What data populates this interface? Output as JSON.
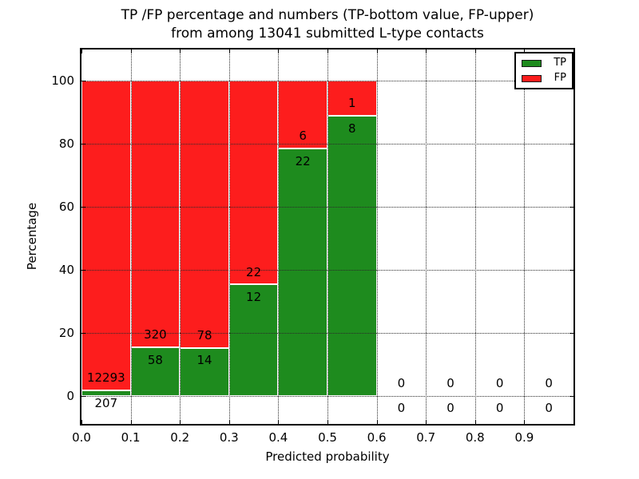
{
  "chart_data": {
    "type": "bar",
    "stacked": true,
    "title": "TP /FP percentage and numbers (TP-bottom value, FP-upper) from among 13041 submitted L-type contacts",
    "title_lines": [
      "TP /FP percentage and numbers (TP-bottom value, FP-upper)",
      "from among 13041 submitted L-type contacts"
    ],
    "total_submitted": 13041,
    "xlabel": "Predicted probability",
    "ylabel": "Percentage",
    "xlim": [
      0.0,
      1.0
    ],
    "ylim": [
      -9,
      110
    ],
    "grid": true,
    "grid_style": "dotted",
    "legend_position": "upper right",
    "series": [
      {
        "name": "TP",
        "color": "#1e8b1e"
      },
      {
        "name": "FP",
        "color": "#fd1d1d"
      }
    ],
    "x_ticks": [
      {
        "value": 0.0,
        "label": "0.0"
      },
      {
        "value": 0.1,
        "label": "0.1"
      },
      {
        "value": 0.2,
        "label": "0.2"
      },
      {
        "value": 0.3,
        "label": "0.3"
      },
      {
        "value": 0.4,
        "label": "0.4"
      },
      {
        "value": 0.5,
        "label": "0.5"
      },
      {
        "value": 0.6,
        "label": "0.6"
      },
      {
        "value": 0.7,
        "label": "0.7"
      },
      {
        "value": 0.8,
        "label": "0.8"
      },
      {
        "value": 0.9,
        "label": "0.9"
      },
      {
        "value": 1.0,
        "label": ""
      }
    ],
    "y_ticks": [
      0,
      20,
      40,
      60,
      80,
      100
    ],
    "bins": [
      {
        "x0": 0.0,
        "x1": 0.1,
        "tp": 207,
        "fp": 12293,
        "tp_pct": 1.66,
        "fp_pct": 98.34
      },
      {
        "x0": 0.1,
        "x1": 0.2,
        "tp": 58,
        "fp": 320,
        "tp_pct": 15.34,
        "fp_pct": 84.66
      },
      {
        "x0": 0.2,
        "x1": 0.3,
        "tp": 14,
        "fp": 78,
        "tp_pct": 15.22,
        "fp_pct": 84.78
      },
      {
        "x0": 0.3,
        "x1": 0.4,
        "tp": 12,
        "fp": 22,
        "tp_pct": 35.29,
        "fp_pct": 64.71
      },
      {
        "x0": 0.4,
        "x1": 0.5,
        "tp": 22,
        "fp": 6,
        "tp_pct": 78.57,
        "fp_pct": 21.43
      },
      {
        "x0": 0.5,
        "x1": 0.6,
        "tp": 8,
        "fp": 1,
        "tp_pct": 88.89,
        "fp_pct": 11.11
      },
      {
        "x0": 0.6,
        "x1": 0.7,
        "tp": 0,
        "fp": 0,
        "tp_pct": 0,
        "fp_pct": 0
      },
      {
        "x0": 0.7,
        "x1": 0.8,
        "tp": 0,
        "fp": 0,
        "tp_pct": 0,
        "fp_pct": 0
      },
      {
        "x0": 0.8,
        "x1": 0.9,
        "tp": 0,
        "fp": 0,
        "tp_pct": 0,
        "fp_pct": 0
      },
      {
        "x0": 0.9,
        "x1": 1.0,
        "tp": 0,
        "fp": 0,
        "tp_pct": 0,
        "fp_pct": 0
      }
    ]
  }
}
